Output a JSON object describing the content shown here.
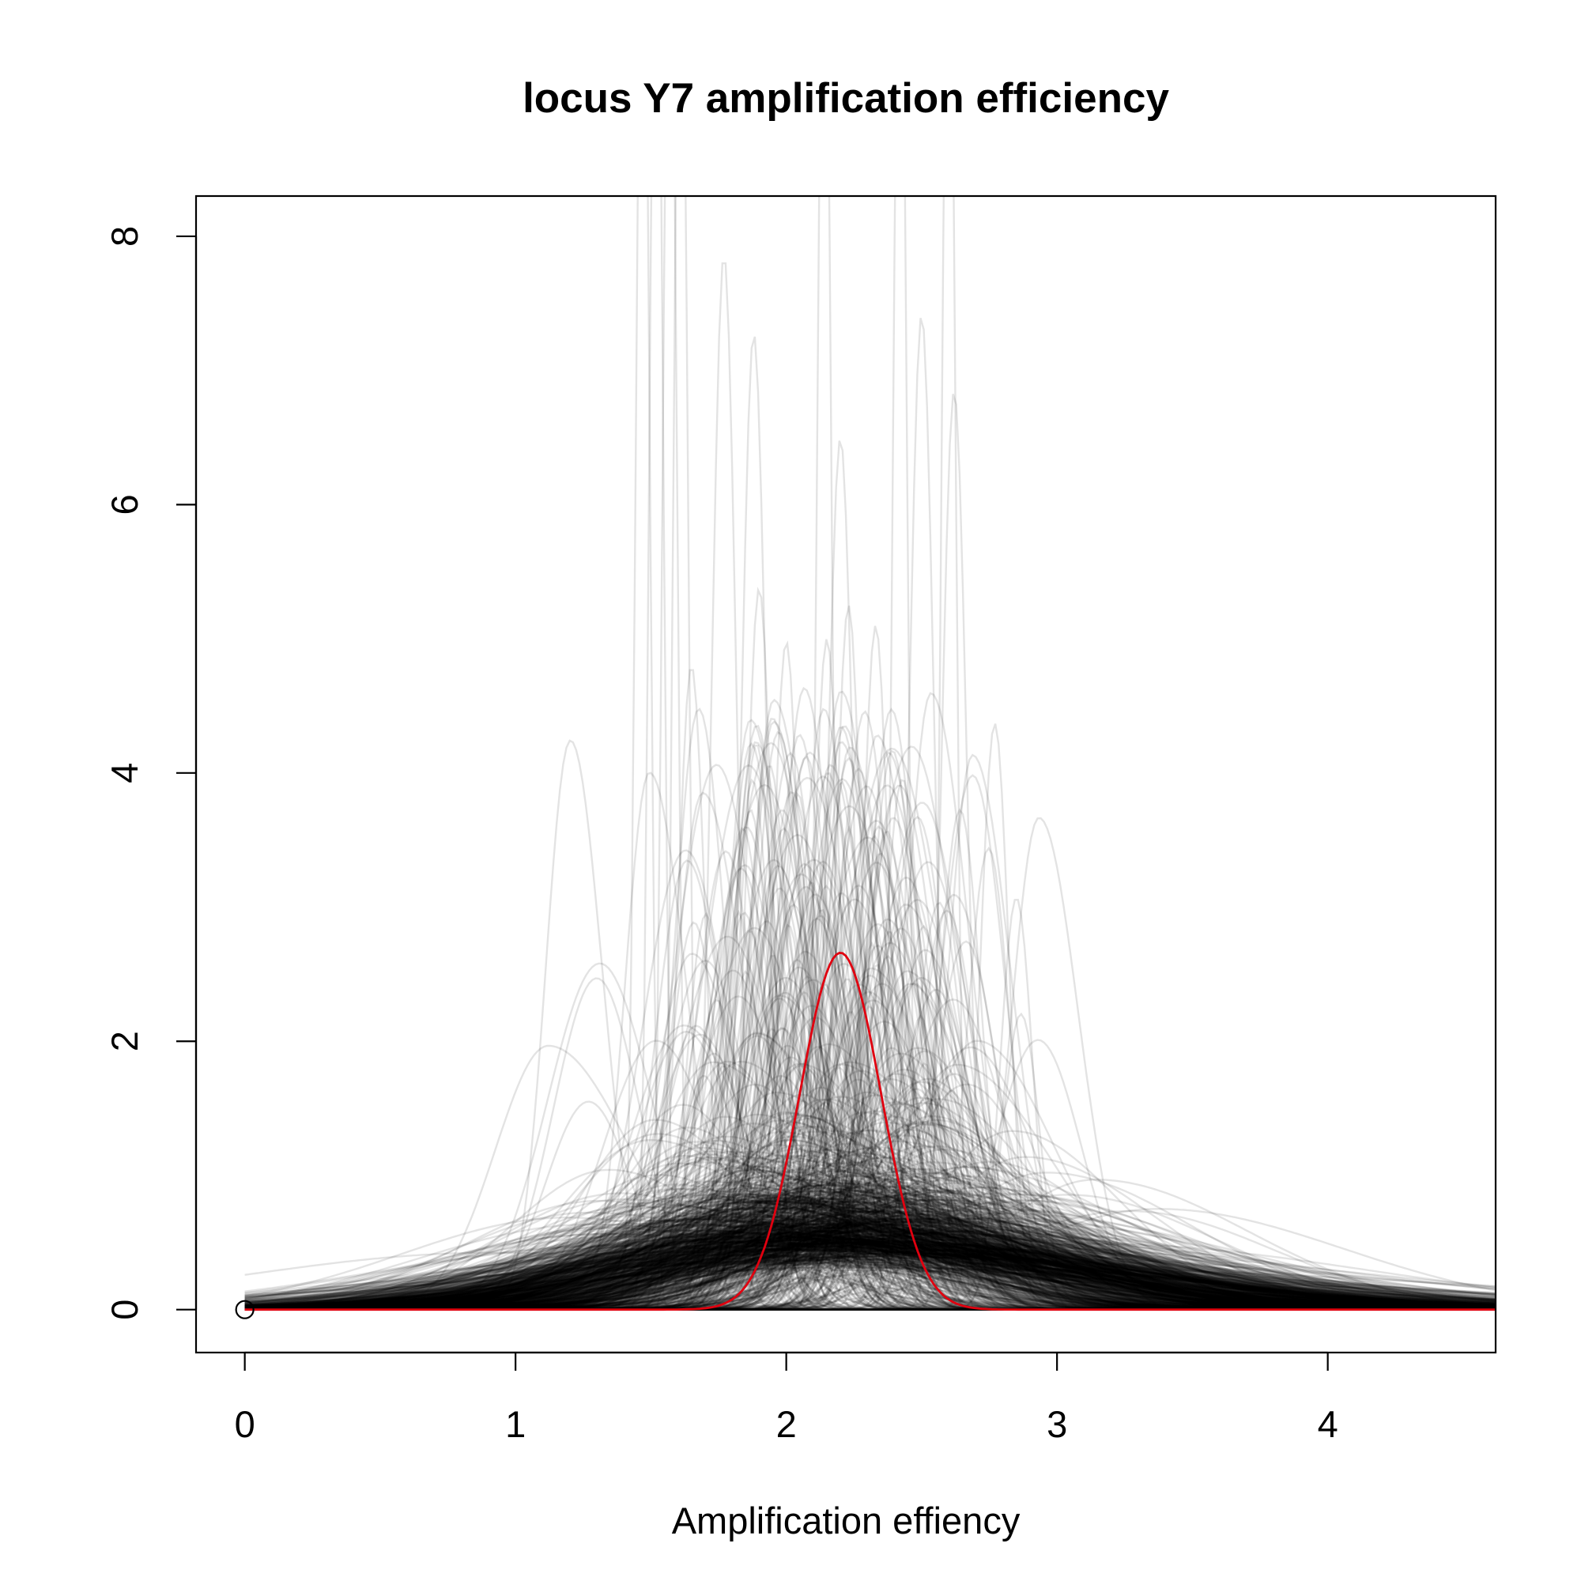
{
  "chart_data": {
    "type": "line",
    "title": "locus Y7 amplification efficiency",
    "xlabel": "Amplification effiency",
    "ylabel": "",
    "xlim": [
      -0.18,
      4.62
    ],
    "ylim": [
      -0.32,
      8.3
    ],
    "xticks": [
      0,
      1,
      2,
      3,
      4
    ],
    "yticks": [
      0,
      2,
      4,
      6,
      8
    ],
    "xtick_labels": [
      "0",
      "1",
      "2",
      "3",
      "4"
    ],
    "ytick_labels": [
      "0",
      "2",
      "4",
      "6",
      "8"
    ],
    "grid": false,
    "legend": "none",
    "colors": {
      "samples": "#000000",
      "highlight": "#e0000f"
    },
    "highlight_series": {
      "name": "",
      "shape": "normal density",
      "mean": 2.2,
      "peak": 2.66,
      "x_range": [
        0,
        4.62
      ]
    },
    "sample_series_description_peaks": [
      {
        "mean": 1.3,
        "peak": 2.47
      },
      {
        "mean": 1.77,
        "peak": 7.87
      },
      {
        "mean": 1.88,
        "peak": 7.28
      },
      {
        "mean": 1.65,
        "peak": 4.8
      },
      {
        "mean": 1.9,
        "peak": 5.38
      },
      {
        "mean": 2.0,
        "peak": 4.98
      },
      {
        "mean": 2.2,
        "peak": 6.5
      },
      {
        "mean": 2.15,
        "peak": 5.0
      },
      {
        "mean": 2.23,
        "peak": 5.25
      },
      {
        "mean": 2.33,
        "peak": 5.1
      },
      {
        "mean": 2.5,
        "peak": 7.42
      },
      {
        "mean": 2.62,
        "peak": 6.85
      },
      {
        "mean": 2.77,
        "peak": 4.37
      },
      {
        "mean": 2.85,
        "peak": 3.07
      },
      {
        "mean": 2.93,
        "peak": 2.01
      },
      {
        "mean": 1.27,
        "peak": 1.55
      }
    ],
    "origin_marker": {
      "x": 0,
      "y": 0
    }
  }
}
